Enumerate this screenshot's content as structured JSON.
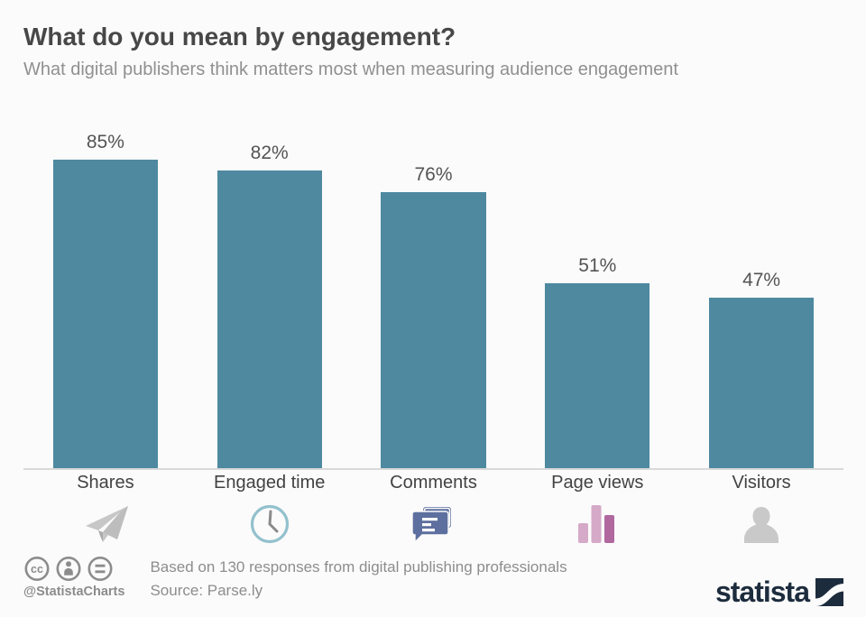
{
  "header": {
    "title": "What do you mean by engagement?",
    "subtitle": "What digital publishers think matters most when measuring audience engagement"
  },
  "chart_data": {
    "type": "bar",
    "title": "What do you mean by engagement?",
    "subtitle": "What digital publishers think matters most when measuring audience engagement",
    "categories": [
      "Shares",
      "Engaged time",
      "Comments",
      "Page views",
      "Visitors"
    ],
    "values": [
      85,
      82,
      76,
      51,
      47
    ],
    "value_labels": [
      "85%",
      "82%",
      "76%",
      "51%",
      "47%"
    ],
    "unit": "%",
    "xlabel": "",
    "ylabel": "",
    "ylim": [
      0,
      100
    ],
    "grid": false,
    "legend": null,
    "bar_color": "#4e89a0",
    "axis_line_color": "#d9d9d9",
    "category_icons": [
      "paper-plane-icon",
      "clock-icon",
      "comments-icon",
      "mini-bar-chart-icon",
      "person-icon"
    ]
  },
  "footer": {
    "license_icons": [
      "cc-icon",
      "attribution-person-icon",
      "equals-icon"
    ],
    "cc_handle": "@StatistaCharts",
    "note_line1": "Based on 130 responses from digital publishing professionals",
    "note_line2": "Source: Parse.ly",
    "brand": "statista"
  },
  "colors": {
    "background": "#fbfbfb",
    "title": "#474747",
    "subtitle": "#909090",
    "bar": "#4e89a0",
    "value_label": "#545454",
    "category_label": "#424242",
    "footer_text": "#8d8d8d",
    "brand_navy": "#1d2c3d",
    "icon_gray": "#c7c7c7",
    "icon_slate_blue": "#5d6f9e",
    "icon_pink_light": "#d5a9c8",
    "icon_pink_dark": "#b0689f",
    "icon_teal_light": "#92c1cd"
  }
}
